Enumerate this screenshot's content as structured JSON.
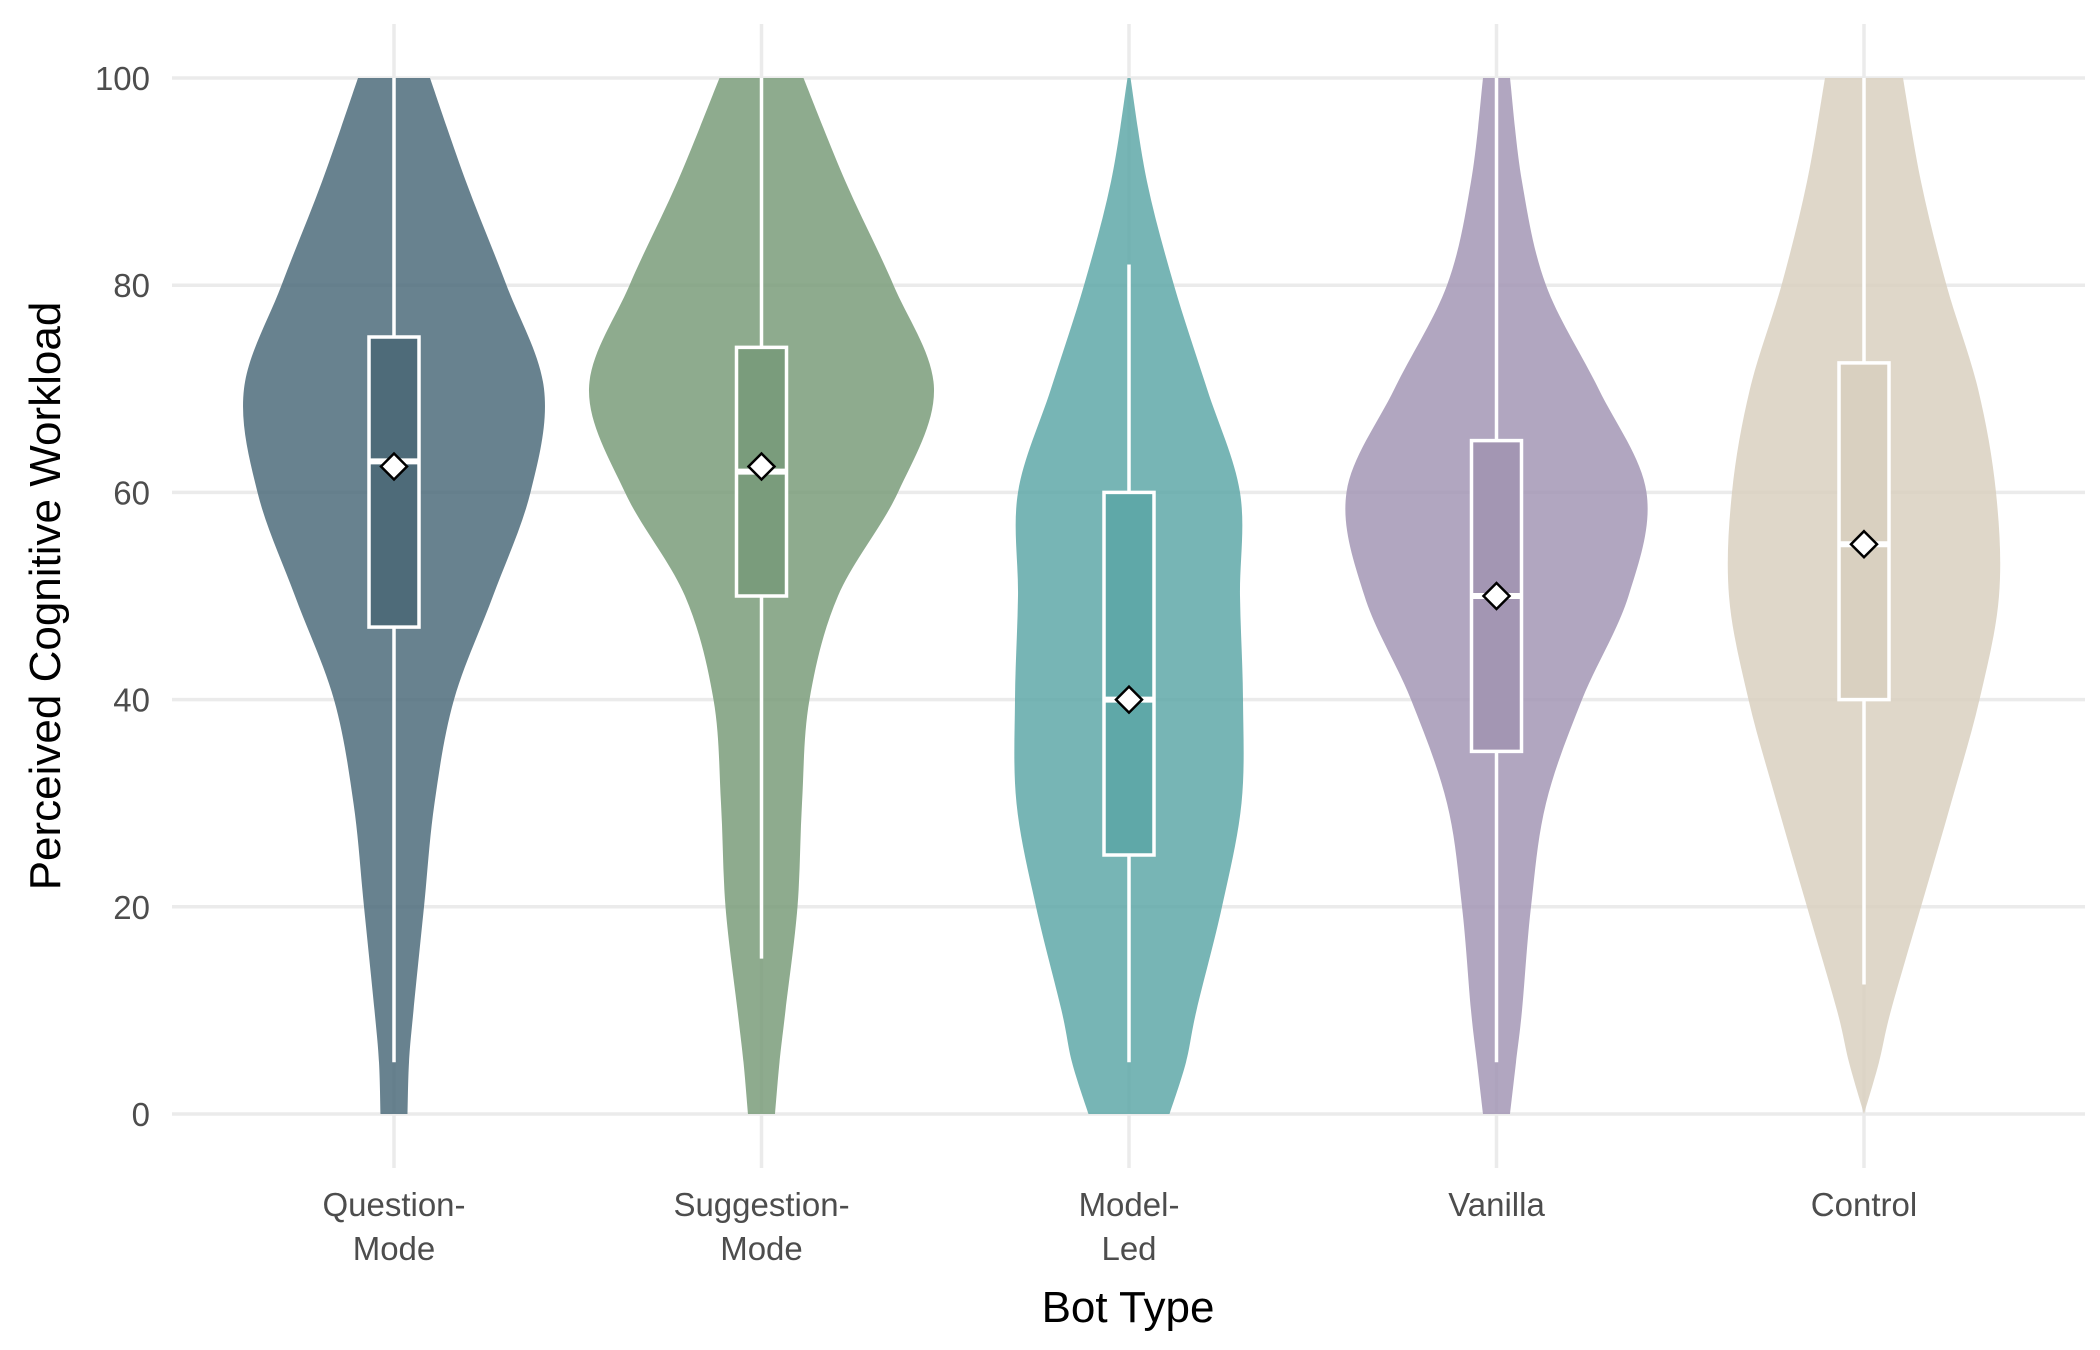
{
  "chart_data": {
    "type": "violin",
    "title": "",
    "xlabel": "Bot Type",
    "ylabel": "Perceived Cognitive Workload",
    "ylim": [
      0,
      100
    ],
    "yticks": [
      0,
      20,
      40,
      60,
      80,
      100
    ],
    "grid": true,
    "legend": "none",
    "categories": [
      {
        "label_lines": [
          "Question-",
          "Mode"
        ],
        "color": "#4e6c7b",
        "box_color": "#4e6b79",
        "min": 5,
        "q1": 47,
        "median": 63,
        "q3": 75,
        "max": 100,
        "mean": 62.5,
        "violin_y": [
          0,
          5,
          10,
          20,
          30,
          40,
          50,
          60,
          70,
          80,
          90,
          100
        ],
        "violin_width": [
          0.09,
          0.1,
          0.13,
          0.2,
          0.27,
          0.4,
          0.66,
          0.91,
          1.0,
          0.75,
          0.48,
          0.24
        ]
      },
      {
        "label_lines": [
          "Suggestion-",
          "Mode"
        ],
        "color": "#7a9c7a",
        "box_color": "#7a9c7c",
        "min": 15,
        "q1": 50,
        "median": 62,
        "q3": 74,
        "max": 100,
        "mean": 62.5,
        "violin_y": [
          0,
          5,
          10,
          20,
          30,
          40,
          50,
          60,
          70,
          80,
          90,
          100
        ],
        "violin_width": [
          0.09,
          0.12,
          0.16,
          0.24,
          0.27,
          0.32,
          0.51,
          0.91,
          1.15,
          0.88,
          0.56,
          0.28
        ]
      },
      {
        "label_lines": [
          "Model-",
          "Led"
        ],
        "color": "#5fa8a8",
        "box_color": "#5fa8a8",
        "min": 5,
        "q1": 25,
        "median": 40,
        "q3": 60,
        "max": 82,
        "mean": 40,
        "violin_y": [
          0,
          5,
          10,
          20,
          30,
          40,
          50,
          60,
          70,
          80,
          90,
          100
        ],
        "violin_width": [
          0.27,
          0.38,
          0.45,
          0.62,
          0.75,
          0.76,
          0.74,
          0.74,
          0.52,
          0.3,
          0.12,
          0.01
        ]
      },
      {
        "label_lines": [
          "Vanilla"
        ],
        "color": "#a397b5",
        "box_color": "#a396b3",
        "min": 5,
        "q1": 35,
        "median": 50,
        "q3": 65,
        "max": 100,
        "mean": 50,
        "violin_y": [
          0,
          5,
          10,
          20,
          30,
          40,
          50,
          60,
          70,
          80,
          90,
          100
        ],
        "violin_width": [
          0.09,
          0.13,
          0.17,
          0.23,
          0.33,
          0.57,
          0.88,
          1.0,
          0.68,
          0.33,
          0.17,
          0.09
        ]
      },
      {
        "label_lines": [
          "Control"
        ],
        "color": "#d9d0c0",
        "box_color": "#d9d0c0",
        "min": 12.5,
        "q1": 40,
        "median": 55,
        "q3": 72.5,
        "max": 100,
        "mean": 55,
        "violin_y": [
          0,
          5,
          10,
          20,
          30,
          40,
          50,
          60,
          70,
          80,
          90,
          100
        ],
        "violin_width": [
          0.0,
          0.1,
          0.18,
          0.38,
          0.58,
          0.77,
          0.9,
          0.88,
          0.76,
          0.55,
          0.38,
          0.26
        ]
      }
    ]
  }
}
